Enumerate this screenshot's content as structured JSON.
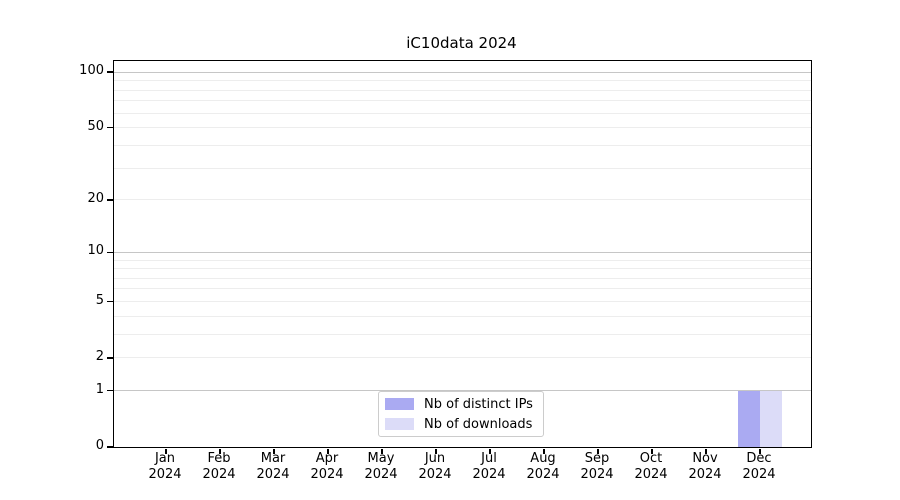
{
  "chart_data": {
    "type": "bar",
    "title": "iC10data 2024",
    "xlabel": "",
    "ylabel": "",
    "x": {
      "months": [
        "Jan",
        "Feb",
        "Mar",
        "Apr",
        "May",
        "Jun",
        "Jul",
        "Aug",
        "Sep",
        "Oct",
        "Nov",
        "Dec"
      ],
      "year": "2024"
    },
    "series": [
      {
        "name": "Nb of distinct IPs",
        "color": "#aaaaf2",
        "values": [
          0,
          0,
          0,
          0,
          0,
          0,
          0,
          0,
          0,
          0,
          0,
          1
        ]
      },
      {
        "name": "Nb of downloads",
        "color": "#dcdcf8",
        "values": [
          0,
          0,
          0,
          0,
          0,
          0,
          0,
          0,
          0,
          0,
          0,
          1
        ]
      }
    ],
    "yscale": "log1p",
    "ylim": [
      0,
      115
    ],
    "y_ticks": [
      0,
      1,
      2,
      5,
      10,
      20,
      50,
      100
    ],
    "y_major_gridlines": [
      1,
      10,
      100
    ],
    "y_minor_gridlines": [
      2,
      3,
      4,
      5,
      6,
      7,
      8,
      9,
      20,
      30,
      40,
      50,
      60,
      70,
      80,
      90
    ],
    "grid": "on",
    "legend_position": "lower center",
    "style": {
      "grid_major_color": "#c6c6c6",
      "grid_minor_color": "#ededed",
      "spine_color": "#000000",
      "background": "#ffffff",
      "legend_border_color": "#cccccc"
    }
  }
}
